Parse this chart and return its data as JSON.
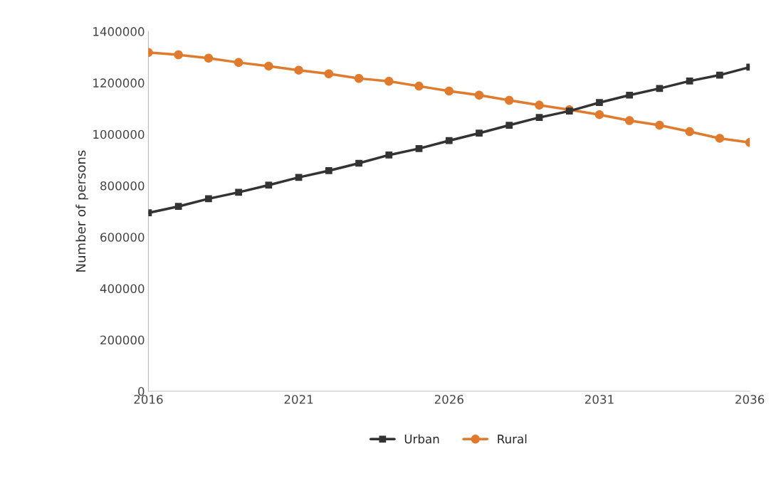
{
  "chart_data": {
    "type": "line",
    "ylabel": "Number of persons",
    "x": [
      2016,
      2017,
      2018,
      2019,
      2020,
      2021,
      2022,
      2023,
      2024,
      2025,
      2026,
      2027,
      2028,
      2029,
      2030,
      2031,
      2032,
      2033,
      2034,
      2035,
      2036
    ],
    "series": [
      {
        "name": "Urban",
        "color": "#333333",
        "marker": "square",
        "values": [
          694000,
          719000,
          749000,
          774000,
          802000,
          832000,
          858000,
          887000,
          919000,
          944000,
          975000,
          1004000,
          1035000,
          1065000,
          1090000,
          1123000,
          1152000,
          1178000,
          1207000,
          1230000,
          1261000
        ]
      },
      {
        "name": "Rural",
        "color": "#e07b2e",
        "marker": "circle",
        "values": [
          1318000,
          1309000,
          1296000,
          1279000,
          1265000,
          1249000,
          1235000,
          1217000,
          1206000,
          1187000,
          1168000,
          1152000,
          1132000,
          1113000,
          1095000,
          1076000,
          1053000,
          1035000,
          1010000,
          984000,
          968000
        ]
      }
    ],
    "xlim": [
      2016,
      2036
    ],
    "xticks": [
      2016,
      2021,
      2026,
      2031,
      2036
    ],
    "ylim": [
      0,
      1400000
    ],
    "yticks": [
      0,
      200000,
      400000,
      600000,
      800000,
      1000000,
      1200000,
      1400000
    ],
    "grid": false,
    "legend": "bottom",
    "line_style": "solid"
  }
}
